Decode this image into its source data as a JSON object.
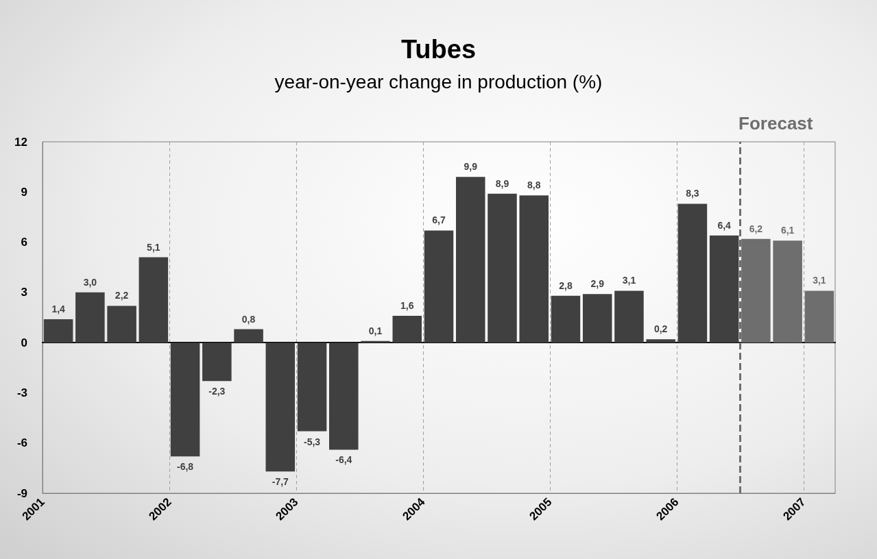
{
  "chart_data": {
    "type": "bar",
    "title": "Tubes",
    "subtitle": "year-on-year change in production (%)",
    "x": [
      2001.125,
      2001.375,
      2001.625,
      2001.875,
      2002.125,
      2002.375,
      2002.625,
      2002.875,
      2003.125,
      2003.375,
      2003.625,
      2003.875,
      2004.125,
      2004.375,
      2004.625,
      2004.875,
      2005.125,
      2005.375,
      2005.625,
      2005.875,
      2006.125,
      2006.375,
      2006.625,
      2006.875,
      2007.125
    ],
    "values": [
      1.4,
      3.0,
      2.2,
      5.1,
      -6.8,
      -2.3,
      0.8,
      -7.7,
      -5.3,
      -6.4,
      0.1,
      1.6,
      6.7,
      9.9,
      8.9,
      8.8,
      2.8,
      2.9,
      3.1,
      0.2,
      8.3,
      6.4,
      6.2,
      6.1,
      3.1
    ],
    "value_labels": [
      "1,4",
      "3,0",
      "2,2",
      "5,1",
      "-6,8",
      "-2,3",
      "0,8",
      "-7,7",
      "-5,3",
      "-6,4",
      "0,1",
      "1,6",
      "6,7",
      "9,9",
      "8,9",
      "8,8",
      "2,8",
      "2,9",
      "3,1",
      "0,2",
      "8,3",
      "6,4",
      "6,2",
      "6,1",
      "3,1"
    ],
    "colors": [
      "#404040",
      "#404040",
      "#404040",
      "#404040",
      "#404040",
      "#404040",
      "#404040",
      "#404040",
      "#404040",
      "#404040",
      "#404040",
      "#404040",
      "#404040",
      "#404040",
      "#404040",
      "#404040",
      "#404040",
      "#404040",
      "#404040",
      "#404040",
      "#404040",
      "#404040",
      "#6e6e6e",
      "#6e6e6e",
      "#6e6e6e"
    ],
    "xlim": [
      2001,
      2007.25
    ],
    "xticks": [
      2001,
      2002,
      2003,
      2004,
      2005,
      2006,
      2007
    ],
    "ylim": [
      -9,
      12
    ],
    "yticks": [
      -9,
      -6,
      -3,
      0,
      3,
      6,
      9,
      12
    ],
    "ref_lines": [
      {
        "axis": "x",
        "value": 2006.5,
        "label": "Forecast",
        "color": "#6e6e6e",
        "line_style": "dashed"
      }
    ],
    "grid": "x"
  }
}
